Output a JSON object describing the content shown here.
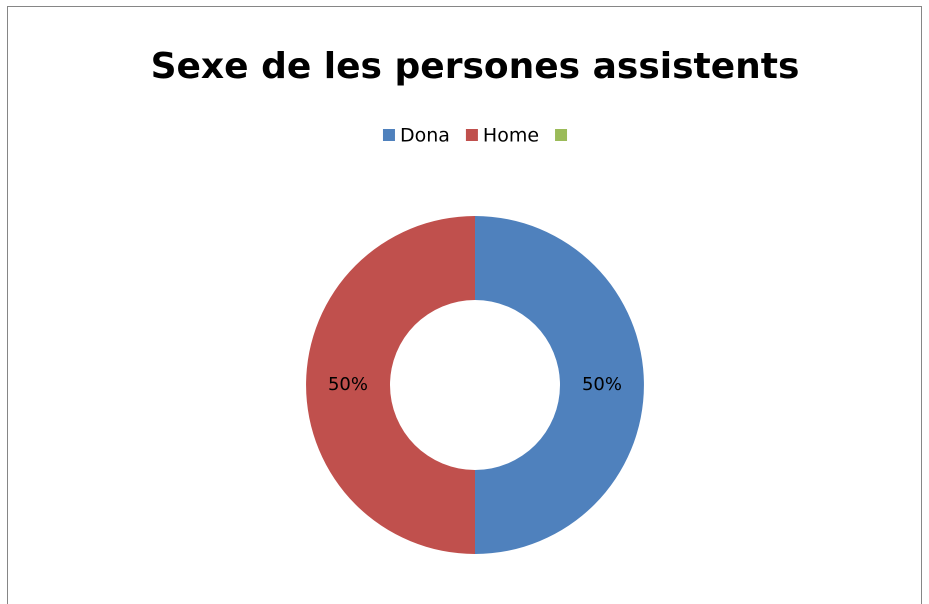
{
  "chart_data": {
    "type": "doughnut",
    "title": "Sexe de les persones assistents",
    "categories": [
      "Dona",
      "Home",
      null
    ],
    "series": [
      {
        "values": [
          50,
          50,
          0
        ],
        "value_labels": [
          "50%",
          "50%",
          null
        ],
        "colors": [
          "#4f81bd",
          "#c0504d",
          "#9bbb59"
        ]
      }
    ],
    "legend": "top"
  }
}
